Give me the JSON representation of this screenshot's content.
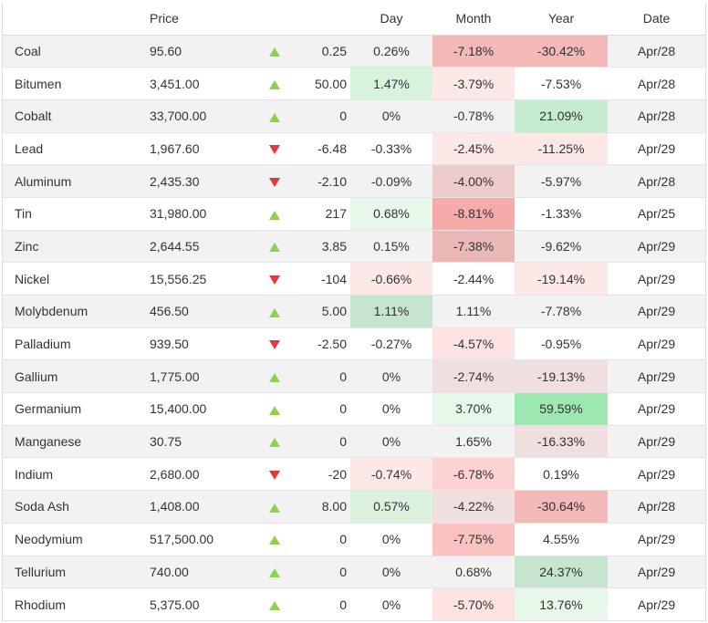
{
  "headers": {
    "name": "",
    "price": "Price",
    "arrow": "",
    "change": "",
    "day": "Day",
    "month": "Month",
    "year": "Year",
    "date": "Date"
  },
  "colors": {
    "up_arrow": "#8fd14f",
    "down_arrow": "#e03a3a"
  },
  "rows": [
    {
      "name": "Coal",
      "price": "95.60",
      "dir": "up",
      "change": "0.25",
      "day": "0.26%",
      "month": "-7.18%",
      "year": "-30.42%",
      "date": "Apr/28",
      "day_bg": "",
      "month_bg": "#f3b8b8",
      "year_bg": "#f3b8b8"
    },
    {
      "name": "Bitumen",
      "price": "3,451.00",
      "dir": "up",
      "change": "50.00",
      "day": "1.47%",
      "month": "-3.79%",
      "year": "-7.53%",
      "date": "Apr/28",
      "day_bg": "#d7f3dc",
      "month_bg": "#fde8e8",
      "year_bg": ""
    },
    {
      "name": "Cobalt",
      "price": "33,700.00",
      "dir": "up",
      "change": "0",
      "day": "0%",
      "month": "-0.78%",
      "year": "21.09%",
      "date": "Apr/28",
      "day_bg": "",
      "month_bg": "",
      "year_bg": "#c5ecce"
    },
    {
      "name": "Lead",
      "price": "1,967.60",
      "dir": "down",
      "change": "-6.48",
      "day": "-0.33%",
      "month": "-2.45%",
      "year": "-11.25%",
      "date": "Apr/29",
      "day_bg": "",
      "month_bg": "#fde8e8",
      "year_bg": "#fde8e8"
    },
    {
      "name": "Aluminum",
      "price": "2,435.30",
      "dir": "down",
      "change": "-2.10",
      "day": "-0.09%",
      "month": "-4.00%",
      "year": "-5.97%",
      "date": "Apr/28",
      "day_bg": "",
      "month_bg": "#efcccc",
      "year_bg": ""
    },
    {
      "name": "Tin",
      "price": "31,980.00",
      "dir": "up",
      "change": "217",
      "day": "0.68%",
      "month": "-8.81%",
      "year": "-1.33%",
      "date": "Apr/25",
      "day_bg": "#e7f8ea",
      "month_bg": "#f7aaaa",
      "year_bg": ""
    },
    {
      "name": "Zinc",
      "price": "2,644.55",
      "dir": "up",
      "change": "3.85",
      "day": "0.15%",
      "month": "-7.38%",
      "year": "-9.62%",
      "date": "Apr/29",
      "day_bg": "",
      "month_bg": "#ebb8b8",
      "year_bg": ""
    },
    {
      "name": "Nickel",
      "price": "15,556.25",
      "dir": "down",
      "change": "-104",
      "day": "-0.66%",
      "month": "-2.44%",
      "year": "-19.14%",
      "date": "Apr/29",
      "day_bg": "#fde8e8",
      "month_bg": "",
      "year_bg": "#fde8e8"
    },
    {
      "name": "Molybdenum",
      "price": "456.50",
      "dir": "up",
      "change": "5.00",
      "day": "1.11%",
      "month": "1.11%",
      "year": "-7.78%",
      "date": "Apr/29",
      "day_bg": "#c5e5ce",
      "month_bg": "",
      "year_bg": ""
    },
    {
      "name": "Palladium",
      "price": "939.50",
      "dir": "down",
      "change": "-2.50",
      "day": "-0.27%",
      "month": "-4.57%",
      "year": "-0.95%",
      "date": "Apr/29",
      "day_bg": "",
      "month_bg": "#fde2e2",
      "year_bg": ""
    },
    {
      "name": "Gallium",
      "price": "1,775.00",
      "dir": "up",
      "change": "0",
      "day": "0%",
      "month": "-2.74%",
      "year": "-19.13%",
      "date": "Apr/29",
      "day_bg": "",
      "month_bg": "#efdfdf",
      "year_bg": "#efdfdf"
    },
    {
      "name": "Germanium",
      "price": "15,400.00",
      "dir": "up",
      "change": "0",
      "day": "0%",
      "month": "3.70%",
      "year": "59.59%",
      "date": "Apr/29",
      "day_bg": "",
      "month_bg": "#e7f8ea",
      "year_bg": "#9de8b0"
    },
    {
      "name": "Manganese",
      "price": "30.75",
      "dir": "up",
      "change": "0",
      "day": "0%",
      "month": "1.65%",
      "year": "-16.33%",
      "date": "Apr/29",
      "day_bg": "",
      "month_bg": "",
      "year_bg": "#efdfdf"
    },
    {
      "name": "Indium",
      "price": "2,680.00",
      "dir": "down",
      "change": "-20",
      "day": "-0.74%",
      "month": "-6.78%",
      "year": "0.19%",
      "date": "Apr/29",
      "day_bg": "#fde8e8",
      "month_bg": "#fcd2d2",
      "year_bg": ""
    },
    {
      "name": "Soda Ash",
      "price": "1,408.00",
      "dir": "up",
      "change": "8.00",
      "day": "0.57%",
      "month": "-4.22%",
      "year": "-30.64%",
      "date": "Apr/28",
      "day_bg": "#dcf0e0",
      "month_bg": "#efdfdf",
      "year_bg": "#f3b8b8"
    },
    {
      "name": "Neodymium",
      "price": "517,500.00",
      "dir": "up",
      "change": "0",
      "day": "0%",
      "month": "-7.75%",
      "year": "4.55%",
      "date": "Apr/29",
      "day_bg": "",
      "month_bg": "#fbc2c2",
      "year_bg": ""
    },
    {
      "name": "Tellurium",
      "price": "740.00",
      "dir": "up",
      "change": "0",
      "day": "0%",
      "month": "0.68%",
      "year": "24.37%",
      "date": "Apr/29",
      "day_bg": "",
      "month_bg": "",
      "year_bg": "#c5e5ce"
    },
    {
      "name": "Rhodium",
      "price": "5,375.00",
      "dir": "up",
      "change": "0",
      "day": "0%",
      "month": "-5.70%",
      "year": "13.76%",
      "date": "Apr/29",
      "day_bg": "",
      "month_bg": "#fde2e2",
      "year_bg": "#e7f8ea"
    }
  ]
}
